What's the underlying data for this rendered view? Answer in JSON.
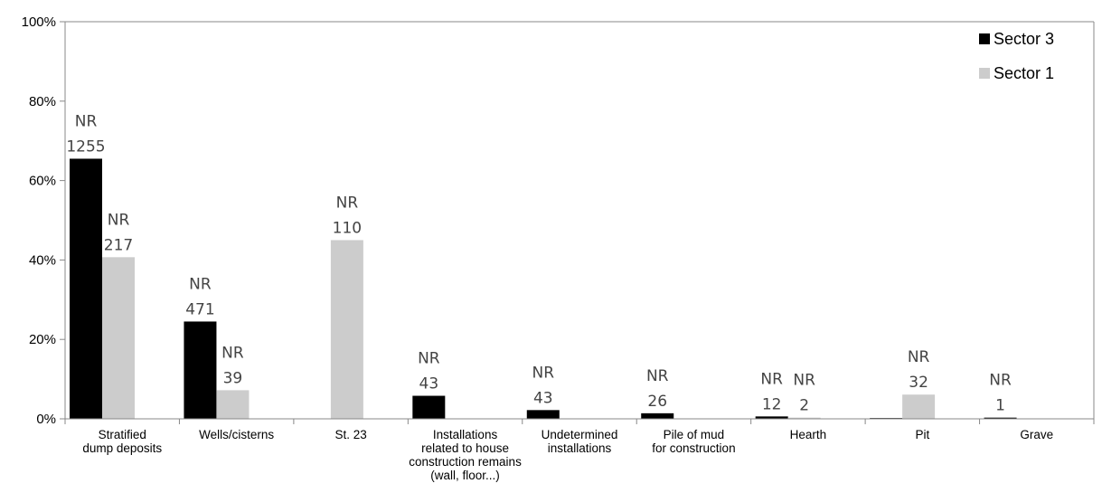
{
  "chart_data": {
    "type": "bar",
    "title": "",
    "xlabel": "",
    "ylabel": "",
    "ylim": [
      0,
      100
    ],
    "yticks": [
      "0%",
      "20%",
      "40%",
      "60%",
      "80%",
      "100%"
    ],
    "grid": false,
    "legend_position": "top-right",
    "categories": [
      [
        "Stratified",
        "dump deposits"
      ],
      [
        "Wells/cisterns"
      ],
      [
        "St. 23"
      ],
      [
        "Installations",
        "related to house",
        "construction remains",
        "(wall, floor...)"
      ],
      [
        "Undetermined",
        "installations"
      ],
      [
        "Pile of mud",
        "for construction"
      ],
      [
        "Hearth"
      ],
      [
        "Pit"
      ],
      [
        "Grave"
      ]
    ],
    "series": [
      {
        "name": "Sector 3",
        "color": "#000000",
        "values": [
          65.5,
          24.5,
          0,
          5.8,
          2.2,
          1.4,
          0.6,
          0.2,
          0.3
        ],
        "labels": [
          "NR\n1255",
          "NR\n471",
          "",
          "NR\n43",
          "NR\n43",
          "NR\n26",
          "NR\n12",
          "",
          "NR\n1"
        ]
      },
      {
        "name": "Sector 1",
        "color": "#cccccc",
        "values": [
          40.7,
          7.2,
          45.0,
          0,
          0,
          0,
          0.3,
          6.1,
          0
        ],
        "labels": [
          "NR\n217",
          "NR\n39",
          "NR\n110",
          "",
          "",
          "",
          "NR\n2",
          "NR\n32",
          ""
        ]
      }
    ]
  }
}
